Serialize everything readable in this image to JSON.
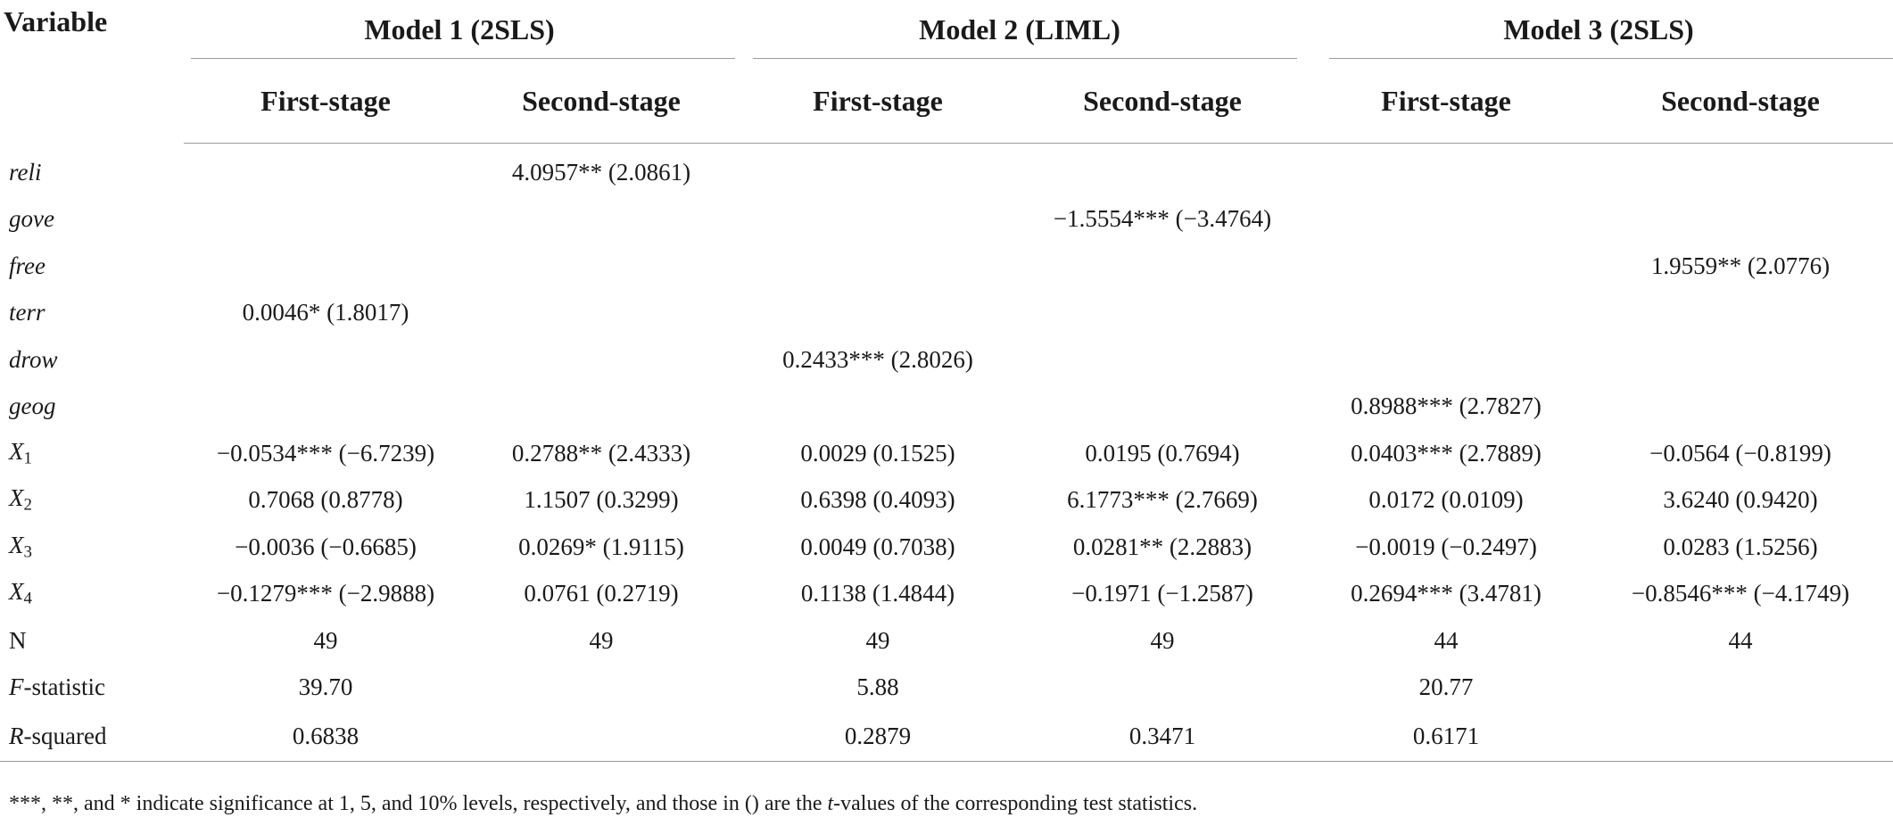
{
  "header": {
    "variable_label": "Variable",
    "models": [
      {
        "label": "Model 1 (2SLS)"
      },
      {
        "label": "Model 2 (LIML)"
      },
      {
        "label": "Model 3 (2SLS)"
      }
    ],
    "stages": [
      "First-stage",
      "Second-stage",
      "First-stage",
      "Second-stage",
      "First-stage",
      "Second-stage"
    ]
  },
  "rows": [
    {
      "var": "reli",
      "cells": [
        "",
        "4.0957** (2.0861)",
        "",
        "",
        "",
        ""
      ]
    },
    {
      "var": "gove",
      "cells": [
        "",
        "",
        "",
        "−1.5554*** (−3.4764)",
        "",
        ""
      ]
    },
    {
      "var": "free",
      "cells": [
        "",
        "",
        "",
        "",
        "",
        "1.9559** (2.0776)"
      ]
    },
    {
      "var": "terr",
      "cells": [
        "0.0046* (1.8017)",
        "",
        "",
        "",
        "",
        ""
      ]
    },
    {
      "var": "drow",
      "cells": [
        "",
        "",
        "0.2433*** (2.8026)",
        "",
        "",
        ""
      ]
    },
    {
      "var": "geog",
      "cells": [
        "",
        "",
        "",
        "",
        "0.8988*** (2.7827)",
        ""
      ]
    },
    {
      "var_base": "X",
      "var_sub": "1",
      "cells": [
        "−0.0534*** (−6.7239)",
        "0.2788** (2.4333)",
        "0.0029 (0.1525)",
        "0.0195 (0.7694)",
        "0.0403*** (2.7889)",
        "−0.0564 (−0.8199)"
      ]
    },
    {
      "var_base": "X",
      "var_sub": "2",
      "cells": [
        "0.7068 (0.8778)",
        "1.1507 (0.3299)",
        "0.6398 (0.4093)",
        "6.1773*** (2.7669)",
        "0.0172 (0.0109)",
        "3.6240 (0.9420)"
      ]
    },
    {
      "var_base": "X",
      "var_sub": "3",
      "cells": [
        "−0.0036 (−0.6685)",
        "0.0269* (1.9115)",
        "0.0049 (0.7038)",
        "0.0281** (2.2883)",
        "−0.0019 (−0.2497)",
        "0.0283 (1.5256)"
      ]
    },
    {
      "var_base": "X",
      "var_sub": "4",
      "cells": [
        "−0.1279*** (−2.9888)",
        "0.0761 (0.2719)",
        "0.1138 (1.4844)",
        "−0.1971 (−1.2587)",
        "0.2694*** (3.4781)",
        "−0.8546*** (−4.1749)"
      ]
    },
    {
      "var": "N",
      "cells": [
        "49",
        "49",
        "49",
        "49",
        "44",
        "44"
      ]
    },
    {
      "var_italic": "F",
      "var_rest": "-statistic",
      "cells": [
        "39.70",
        "",
        "5.88",
        "",
        "20.77",
        ""
      ]
    },
    {
      "var_italic": "R",
      "var_rest": "-squared",
      "cells": [
        "0.6838",
        "",
        "0.2879",
        "0.3471",
        "0.6171",
        ""
      ]
    }
  ],
  "note": {
    "before_t": "***, **, and * indicate significance at 1, 5, and 10% levels, respectively, and those in () are the ",
    "t": "t",
    "after_t": "-values of the corresponding test statistics."
  }
}
